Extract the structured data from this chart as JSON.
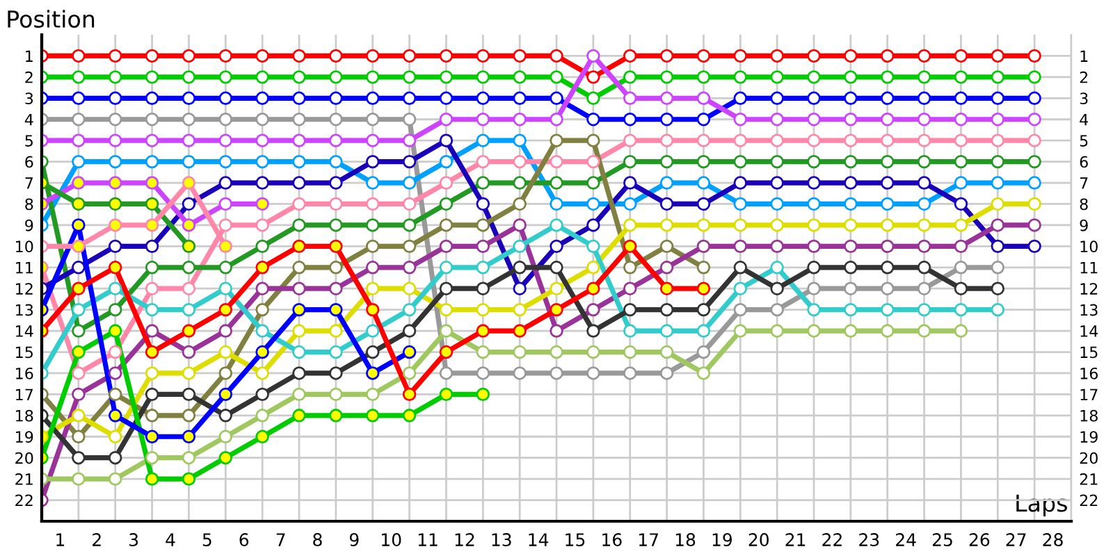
{
  "chart_data": {
    "type": "line",
    "xlabel": "Laps",
    "ylabel": "Position",
    "marker": "circle",
    "grid": true,
    "x": [
      0,
      1,
      2,
      3,
      4,
      5,
      6,
      7,
      8,
      9,
      10,
      11,
      12,
      13,
      14,
      15,
      16,
      17,
      18,
      19,
      20,
      21,
      22,
      23,
      24,
      25,
      26,
      27
    ],
    "xlim": [
      0,
      28
    ],
    "xticks": [
      {
        "value": 0,
        "label": null
      },
      {
        "value": 1,
        "label": null
      },
      {
        "value": 2,
        "label": null
      },
      {
        "value": 3,
        "label": null
      },
      {
        "value": 4,
        "label": null
      },
      {
        "value": 5,
        "label": null
      },
      {
        "value": 6,
        "label": null
      },
      {
        "value": 7,
        "label": null
      },
      {
        "value": 8,
        "label": null
      },
      {
        "value": 9,
        "label": null
      },
      {
        "value": 10,
        "label": null
      },
      {
        "value": 11,
        "label": null
      },
      {
        "value": 12,
        "label": null
      },
      {
        "value": 13,
        "label": null
      },
      {
        "value": 14,
        "label": null
      },
      {
        "value": 15,
        "label": null
      },
      {
        "value": 16,
        "label": null
      },
      {
        "value": 17,
        "label": null
      },
      {
        "value": 18,
        "label": null
      },
      {
        "value": 19,
        "label": null
      },
      {
        "value": 20,
        "label": null
      },
      {
        "value": 21,
        "label": null
      },
      {
        "value": 22,
        "label": null
      },
      {
        "value": 23,
        "label": null
      },
      {
        "value": 24,
        "label": null
      },
      {
        "value": 25,
        "label": null
      },
      {
        "value": 26,
        "label": null
      },
      {
        "value": 27,
        "label": null
      },
      {
        "value": 28,
        "label": null
      },
      {
        "value": 0.5,
        "label": "1"
      },
      {
        "value": 1.5,
        "label": "2"
      },
      {
        "value": 2.5,
        "label": "3"
      },
      {
        "value": 3.5,
        "label": "4"
      },
      {
        "value": 4.5,
        "label": "5"
      },
      {
        "value": 5.5,
        "label": "6"
      },
      {
        "value": 6.5,
        "label": "7"
      },
      {
        "value": 7.5,
        "label": "8"
      },
      {
        "value": 8.5,
        "label": "9"
      },
      {
        "value": 9.5,
        "label": "10"
      },
      {
        "value": 10.5,
        "label": "11"
      },
      {
        "value": 11.5,
        "label": "12"
      },
      {
        "value": 12.5,
        "label": "13"
      },
      {
        "value": 13.5,
        "label": "14"
      },
      {
        "value": 14.5,
        "label": "15"
      },
      {
        "value": 15.5,
        "label": "16"
      },
      {
        "value": 16.5,
        "label": "17"
      },
      {
        "value": 17.5,
        "label": "18"
      },
      {
        "value": 18.5,
        "label": "19"
      },
      {
        "value": 19.5,
        "label": "20"
      },
      {
        "value": 20.5,
        "label": "21"
      },
      {
        "value": 21.5,
        "label": "22"
      },
      {
        "value": 22.5,
        "label": "23"
      },
      {
        "value": 23.5,
        "label": "24"
      },
      {
        "value": 24.5,
        "label": "25"
      },
      {
        "value": 25.5,
        "label": "26"
      },
      {
        "value": 26.5,
        "label": "27"
      },
      {
        "value": 27.5,
        "label": "28"
      }
    ],
    "ylim": [
      23,
      0
    ],
    "yticks": [
      1,
      2,
      3,
      4,
      5,
      6,
      7,
      8,
      9,
      10,
      11,
      12,
      13,
      14,
      15,
      16,
      17,
      18,
      19,
      20,
      21,
      22
    ],
    "y2lim": [
      23,
      0
    ],
    "y2ticks": [
      1,
      2,
      3,
      4,
      5,
      6,
      7,
      8,
      9,
      10,
      11,
      12,
      13,
      14,
      15,
      16,
      17,
      18,
      19,
      20,
      21,
      22
    ],
    "series": [
      {
        "color": "#ff0000",
        "values": [
          1,
          1,
          1,
          1,
          1,
          1,
          1,
          1,
          1,
          1,
          1,
          1,
          1,
          1,
          1,
          2,
          1,
          1,
          1,
          1,
          1,
          1,
          1,
          1,
          1,
          1,
          1,
          1
        ]
      },
      {
        "color": "#00cc00",
        "values": [
          2,
          2,
          2,
          2,
          2,
          2,
          2,
          2,
          2,
          2,
          2,
          2,
          2,
          2,
          2,
          3,
          2,
          2,
          2,
          2,
          2,
          2,
          2,
          2,
          2,
          2,
          2,
          2
        ]
      },
      {
        "color": "#0000ff",
        "values": [
          3,
          3,
          3,
          3,
          3,
          3,
          3,
          3,
          3,
          3,
          3,
          3,
          3,
          3,
          3,
          4,
          4,
          4,
          4,
          3,
          3,
          3,
          3,
          3,
          3,
          3,
          3,
          3
        ]
      },
      {
        "color": "#999999",
        "values": [
          4,
          4,
          4,
          4,
          4,
          4,
          4,
          4,
          4,
          4,
          4,
          16,
          16,
          16,
          16,
          16,
          16,
          16,
          15,
          13,
          13,
          12,
          12,
          12,
          12,
          11,
          11,
          null
        ]
      },
      {
        "color": "#cc44ff",
        "values": [
          5,
          5,
          5,
          5,
          5,
          5,
          5,
          5,
          5,
          5,
          5,
          4,
          4,
          4,
          4,
          1,
          3,
          3,
          3,
          4,
          4,
          4,
          4,
          4,
          4,
          4,
          4,
          4
        ]
      },
      {
        "color": "#00a0ff",
        "values": [
          9,
          6,
          6,
          6,
          6,
          6,
          6,
          6,
          6,
          7,
          7,
          6,
          5,
          5,
          8,
          8,
          8,
          7,
          7,
          8,
          8,
          8,
          8,
          8,
          8,
          7,
          7,
          7
        ]
      },
      {
        "color": "#ff88aa",
        "values": [
          11,
          16,
          15,
          12,
          12,
          9,
          9,
          8,
          8,
          8,
          8,
          7,
          6,
          6,
          6,
          6,
          5,
          5,
          5,
          5,
          5,
          5,
          5,
          5,
          5,
          5,
          5,
          5
        ],
        "colors": [
          "#ffff00",
          "#ffffff",
          "#ffffff",
          "#ffffff",
          "#ffffff",
          "#ffffff",
          "#ffffff",
          "#ffffff",
          "#ffffff",
          "#ffffff",
          "#ffffff",
          "#ffffff",
          "#ffffff",
          "#ffffff",
          "#ffffff",
          "#ffffff",
          "#ffffff",
          "#ffffff",
          "#ffffff",
          "#ffffff",
          "#ffffff",
          "#ffffff",
          "#ffffff",
          "#ffffff",
          "#ffffff",
          "#ffffff",
          "#ffffff",
          "#ffffff"
        ]
      },
      {
        "color": "#229922",
        "values": [
          6,
          14,
          13,
          11,
          11,
          11,
          10,
          9,
          9,
          9,
          9,
          8,
          7,
          7,
          7,
          7,
          6,
          6,
          6,
          6,
          6,
          6,
          6,
          6,
          6,
          6,
          6,
          6
        ]
      },
      {
        "color": "#1a00b8",
        "values": [
          12,
          11,
          10,
          10,
          8,
          7,
          7,
          7,
          7,
          6,
          6,
          5,
          8,
          12,
          10,
          9,
          7,
          8,
          8,
          7,
          7,
          7,
          7,
          7,
          7,
          8,
          10,
          10
        ]
      },
      {
        "color": "#808040",
        "values": [
          17,
          19,
          17,
          18,
          18,
          16,
          13,
          11,
          11,
          10,
          10,
          9,
          9,
          8,
          5,
          5,
          11,
          10,
          11,
          null,
          null,
          null,
          null,
          null,
          null,
          null,
          null,
          null
        ]
      },
      {
        "color": "#993399",
        "values": [
          22,
          17,
          16,
          14,
          15,
          14,
          12,
          12,
          12,
          11,
          11,
          10,
          10,
          9,
          14,
          13,
          12,
          11,
          10,
          10,
          10,
          10,
          10,
          10,
          10,
          10,
          9,
          9
        ]
      },
      {
        "color": "#dddd00",
        "values": [
          19,
          18,
          19,
          16,
          16,
          15,
          16,
          14,
          14,
          12,
          12,
          13,
          13,
          13,
          12,
          11,
          9,
          9,
          9,
          9,
          9,
          9,
          9,
          9,
          9,
          9,
          8,
          8
        ],
        "colors": [
          "#ffff00",
          "#ffffff",
          "#ffffff",
          "#ffffff",
          "#ffffff",
          "#ffffff",
          "#ffffff",
          "#ffffff",
          "#ffffff",
          "#ffffff",
          "#ffffff",
          "#ffffff",
          "#ffffff",
          "#ffffff",
          "#ffffff",
          "#ffffff",
          "#ffffff",
          "#ffffff",
          "#ffffff",
          "#ffffff",
          "#ffffff",
          "#ffffff",
          "#ffffff",
          "#ffffff",
          "#ffffff",
          "#ffffff",
          "#ffffff",
          "#ffffff"
        ]
      },
      {
        "color": "#33cccc",
        "values": [
          16,
          13,
          12,
          13,
          13,
          12,
          14,
          15,
          15,
          14,
          13,
          11,
          11,
          10,
          9,
          10,
          14,
          14,
          14,
          12,
          11,
          13,
          13,
          13,
          13,
          13,
          13,
          null
        ]
      },
      {
        "color": "#333333",
        "values": [
          18,
          20,
          20,
          17,
          17,
          18,
          17,
          16,
          16,
          15,
          14,
          12,
          12,
          11,
          11,
          14,
          13,
          13,
          13,
          11,
          12,
          11,
          11,
          11,
          11,
          12,
          12,
          null
        ]
      },
      {
        "color": "#a0c860",
        "values": [
          21,
          21,
          21,
          20,
          20,
          19,
          18,
          17,
          17,
          17,
          16,
          14,
          15,
          15,
          15,
          15,
          15,
          15,
          16,
          14,
          14,
          14,
          14,
          14,
          14,
          14,
          null,
          null
        ]
      },
      {
        "color": "#00cc00",
        "values": [
          20,
          15,
          14,
          21,
          21,
          20,
          19,
          18,
          18,
          18,
          18,
          17,
          17,
          null,
          null,
          null,
          null,
          null,
          null,
          null,
          null,
          null,
          null,
          null,
          null,
          null,
          null,
          null
        ],
        "colors": [
          "#ffff00",
          "#ffff00",
          "#ffff00",
          "#ffff00",
          "#ffff00",
          "#ffff00",
          "#ffff00",
          "#ffff00",
          "#ffff00",
          "#ffff00",
          "#ffff00",
          "#ffff00",
          "#ffff00",
          null,
          null,
          null,
          null,
          null,
          null,
          null,
          null,
          null,
          null,
          null,
          null,
          null,
          null,
          null
        ]
      },
      {
        "color": "#0000ff",
        "values": [
          13,
          9,
          18,
          19,
          19,
          17,
          15,
          13,
          13,
          16,
          15,
          null,
          null,
          null,
          null,
          null,
          null,
          null,
          null,
          null,
          null,
          null,
          null,
          null,
          null,
          null,
          null,
          null
        ],
        "colors": [
          "#ffff00",
          "#ffff00",
          "#ffff00",
          "#ffff00",
          "#ffff00",
          "#ffff00",
          "#ffff00",
          "#ffff00",
          "#ffff00",
          "#ffff00",
          "#ffff00",
          null,
          null,
          null,
          null,
          null,
          null,
          null,
          null,
          null,
          null,
          null,
          null,
          null,
          null,
          null,
          null,
          null
        ]
      },
      {
        "color": "#ff0000",
        "values": [
          14,
          12,
          11,
          15,
          14,
          13,
          11,
          10,
          10,
          13,
          17,
          15,
          14,
          14,
          13,
          12,
          10,
          12,
          12,
          null,
          null,
          null,
          null,
          null,
          null,
          null,
          null,
          null
        ],
        "colors": [
          "#ffff00",
          "#ffff00",
          "#ffff00",
          "#ffff00",
          "#ffff00",
          "#ffff00",
          "#ffff00",
          "#ffff00",
          "#ffff00",
          "#ffff00",
          "#ffff00",
          "#ffff00",
          "#ffff00",
          "#ffff00",
          "#ffff00",
          "#ffff00",
          "#ffff00",
          "#ffff00",
          "#ffff00",
          null,
          null,
          null,
          null,
          null,
          null,
          null,
          null,
          null
        ]
      },
      {
        "color": "#cc44ff",
        "values": [
          8,
          7,
          7,
          7,
          9,
          8,
          8,
          null,
          null,
          null,
          null,
          null,
          null,
          null,
          null,
          null,
          null,
          null,
          null,
          null,
          null,
          null,
          null,
          null,
          null,
          null,
          null,
          null
        ],
        "colors": [
          "#ffff00",
          "#ffff00",
          "#ffff00",
          "#ffff00",
          "#ffff00",
          "#ffffff",
          "#ffff00",
          null,
          null,
          null,
          null,
          null,
          null,
          null,
          null,
          null,
          null,
          null,
          null,
          null,
          null,
          null,
          null,
          null,
          null,
          null,
          null,
          null
        ]
      },
      {
        "color": "#229922",
        "values": [
          7,
          8,
          8,
          8,
          10,
          null,
          null,
          null,
          null,
          null,
          null,
          null,
          null,
          null,
          null,
          null,
          null,
          null,
          null,
          null,
          null,
          null,
          null,
          null,
          null,
          null,
          null,
          null
        ],
        "colors": [
          "#ffff00",
          "#ffff00",
          "#ffff00",
          "#ffff00",
          "#ffff00",
          null,
          null,
          null,
          null,
          null,
          null,
          null,
          null,
          null,
          null,
          null,
          null,
          null,
          null,
          null,
          null,
          null,
          null,
          null,
          null,
          null,
          null,
          null
        ]
      },
      {
        "color": "#ff88aa",
        "values": [
          10,
          10,
          9,
          9,
          7,
          10,
          null,
          null,
          null,
          null,
          null,
          null,
          null,
          null,
          null,
          null,
          null,
          null,
          null,
          null,
          null,
          null,
          null,
          null,
          null,
          null,
          null,
          null
        ],
        "colors": [
          "#ffffff",
          "#ffff00",
          "#ffff00",
          "#ffff00",
          "#ffff00",
          "#ffff00",
          null,
          null,
          null,
          null,
          null,
          null,
          null,
          null,
          null,
          null,
          null,
          null,
          null,
          null,
          null,
          null,
          null,
          null,
          null,
          null,
          null,
          null
        ]
      }
    ]
  }
}
